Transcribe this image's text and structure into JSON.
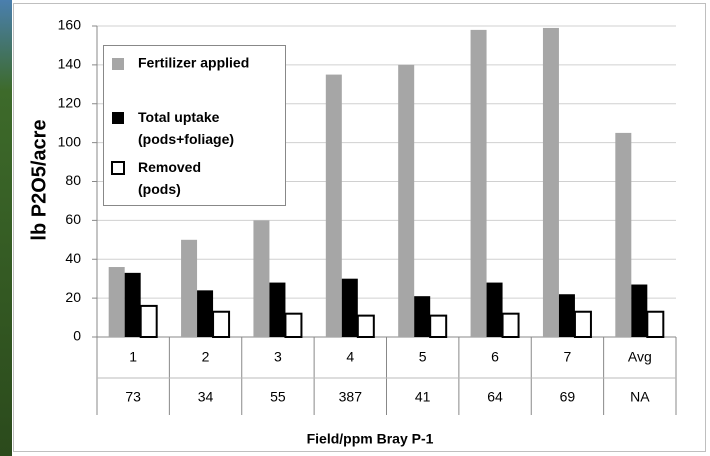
{
  "chart_data": {
    "type": "bar",
    "y_label": "lb P2O5/acre",
    "x_label": "Field/ppm Bray P-1",
    "categories": [
      "1",
      "2",
      "3",
      "4",
      "5",
      "6",
      "7",
      "Avg"
    ],
    "category_sub_labels": [
      "73",
      "34",
      "55",
      "387",
      "41",
      "64",
      "69",
      "NA"
    ],
    "series": [
      {
        "name": "Fertilizer applied",
        "color": "#a6a6a6",
        "values": [
          36,
          50,
          60,
          135,
          140,
          158,
          159,
          105
        ]
      },
      {
        "name": "Total uptake (pods+foliage)",
        "color": "#000000",
        "values": [
          33,
          24,
          28,
          30,
          21,
          28,
          22,
          27
        ]
      },
      {
        "name": "Removed (pods)",
        "color": "#ffffff",
        "values": [
          16,
          13,
          12,
          11,
          11,
          12,
          13,
          13
        ]
      }
    ],
    "ylim": [
      0,
      160
    ],
    "yticks": [
      0,
      20,
      40,
      60,
      80,
      100,
      120,
      140,
      160
    ],
    "grid": true
  }
}
